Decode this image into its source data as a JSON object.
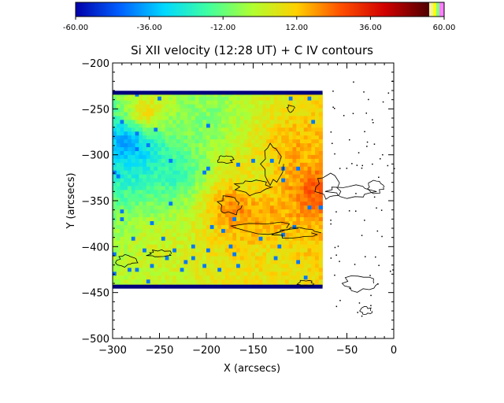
{
  "chart_data": {
    "type": "heatmap",
    "title": "Si XII velocity (12:28 UT) + C IV contours",
    "xlabel": "X (arcsecs)",
    "ylabel": "Y (arcsecs)",
    "xlim": [
      -300,
      0
    ],
    "ylim": [
      -500,
      -200
    ],
    "x_ticks": [
      -300,
      -250,
      -200,
      -150,
      -100,
      -50,
      0
    ],
    "y_ticks": [
      -500,
      -450,
      -400,
      -350,
      -300,
      -250,
      -200
    ],
    "x_tick_labels": [
      "−300",
      "−250",
      "−200",
      "−150",
      "−100",
      "−50",
      "0"
    ],
    "y_tick_labels": [
      "−500",
      "−450",
      "−400",
      "−350",
      "−300",
      "−250",
      "−200"
    ],
    "raster_extent": {
      "x": [
        -300,
        -76
      ],
      "y": [
        -444,
        -232
      ]
    },
    "colorbar": {
      "range": [
        -60,
        60
      ],
      "tick_values": [
        -60,
        -36,
        -12,
        12,
        36,
        60
      ],
      "tick_labels": [
        "-60.00",
        "-36.00",
        "-12.00",
        "12.00",
        "36.00",
        "60.00"
      ],
      "colors": [
        "#0000aa",
        "#0060ff",
        "#00d8ff",
        "#40ffa0",
        "#b0ff30",
        "#ffd000",
        "#ff5000",
        "#d00000",
        "#500000"
      ]
    },
    "velocity_regions": [
      {
        "x": -285,
        "y": -285,
        "value": -45
      },
      {
        "x": -270,
        "y": -300,
        "value": -30
      },
      {
        "x": -230,
        "y": -320,
        "value": -20
      },
      {
        "x": -200,
        "y": -260,
        "value": -8
      },
      {
        "x": -150,
        "y": -330,
        "value": 6
      },
      {
        "x": -170,
        "y": -355,
        "value": 30
      },
      {
        "x": -140,
        "y": -365,
        "value": 22
      },
      {
        "x": -85,
        "y": -340,
        "value": 32
      },
      {
        "x": -105,
        "y": -300,
        "value": 20
      },
      {
        "x": -250,
        "y": -400,
        "value": 5
      },
      {
        "x": -130,
        "y": -410,
        "value": 10
      },
      {
        "x": -265,
        "y": -255,
        "value": 18
      }
    ]
  }
}
